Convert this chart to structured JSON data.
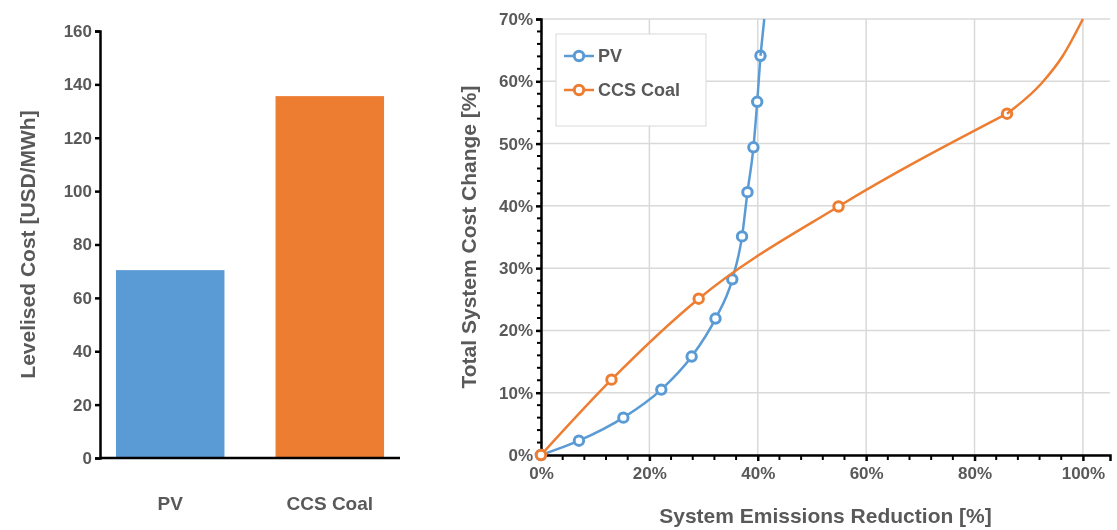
{
  "chart_data": [
    {
      "type": "bar",
      "ylabel": "Levelised Cost [USD/MWh]",
      "categories": [
        "PV",
        "CCS Coal"
      ],
      "values": [
        70.4,
        135.6
      ],
      "colors": [
        "#5b9bd5",
        "#ed7d31"
      ],
      "ylim": [
        0,
        160
      ],
      "yticks": [
        0,
        20,
        40,
        60,
        80,
        100,
        120,
        140,
        160
      ],
      "grid": false
    },
    {
      "type": "line",
      "xlabel": "System Emissions Reduction [%]",
      "ylabel": "Total System Cost Change [%]",
      "xlim": [
        0,
        105
      ],
      "ylim": [
        0,
        70
      ],
      "xticks": [
        {
          "value": 0,
          "label": "0%"
        },
        {
          "value": 20,
          "label": "20%"
        },
        {
          "value": 40,
          "label": "40%"
        },
        {
          "value": 60,
          "label": "60%"
        },
        {
          "value": 80,
          "label": "80%"
        },
        {
          "value": 100,
          "label": "100%"
        }
      ],
      "yticks": [
        {
          "value": 0,
          "label": "0%"
        },
        {
          "value": 10,
          "label": "10%"
        },
        {
          "value": 20,
          "label": "20%"
        },
        {
          "value": 30,
          "label": "30%"
        },
        {
          "value": 40,
          "label": "40%"
        },
        {
          "value": 50,
          "label": "50%"
        },
        {
          "value": 60,
          "label": "60%"
        },
        {
          "value": 70,
          "label": "70%"
        }
      ],
      "grid": true,
      "legend": "top left",
      "marker": "circle",
      "series": [
        {
          "name": "PV",
          "color": "#5b9bd5",
          "x": [
            0,
            7.0,
            15.2,
            22.2,
            27.8,
            32.2,
            35.3,
            37.1,
            38.1,
            39.2,
            39.9,
            40.5
          ],
          "values": [
            0,
            2.3,
            6.0,
            10.5,
            15.8,
            21.9,
            28.2,
            35.1,
            42.2,
            49.4,
            56.7,
            64.1
          ]
        },
        {
          "name": "CCS Coal",
          "color": "#ed7d31",
          "x": [
            0,
            13.0,
            29.1,
            54.9,
            86.0
          ],
          "values": [
            0,
            12.1,
            25.1,
            39.9,
            54.8
          ]
        },
        {
          "color": "#5b9bd5",
          "marker": "none",
          "x": [
            40.5,
            41.2
          ],
          "values": [
            64.1,
            70
          ]
        },
        {
          "color": "#ed7d31",
          "marker": "none",
          "x": [
            86.0,
            92.5,
            96.3,
            100
          ],
          "values": [
            54.8,
            59.8,
            64.1,
            70
          ]
        }
      ]
    }
  ]
}
